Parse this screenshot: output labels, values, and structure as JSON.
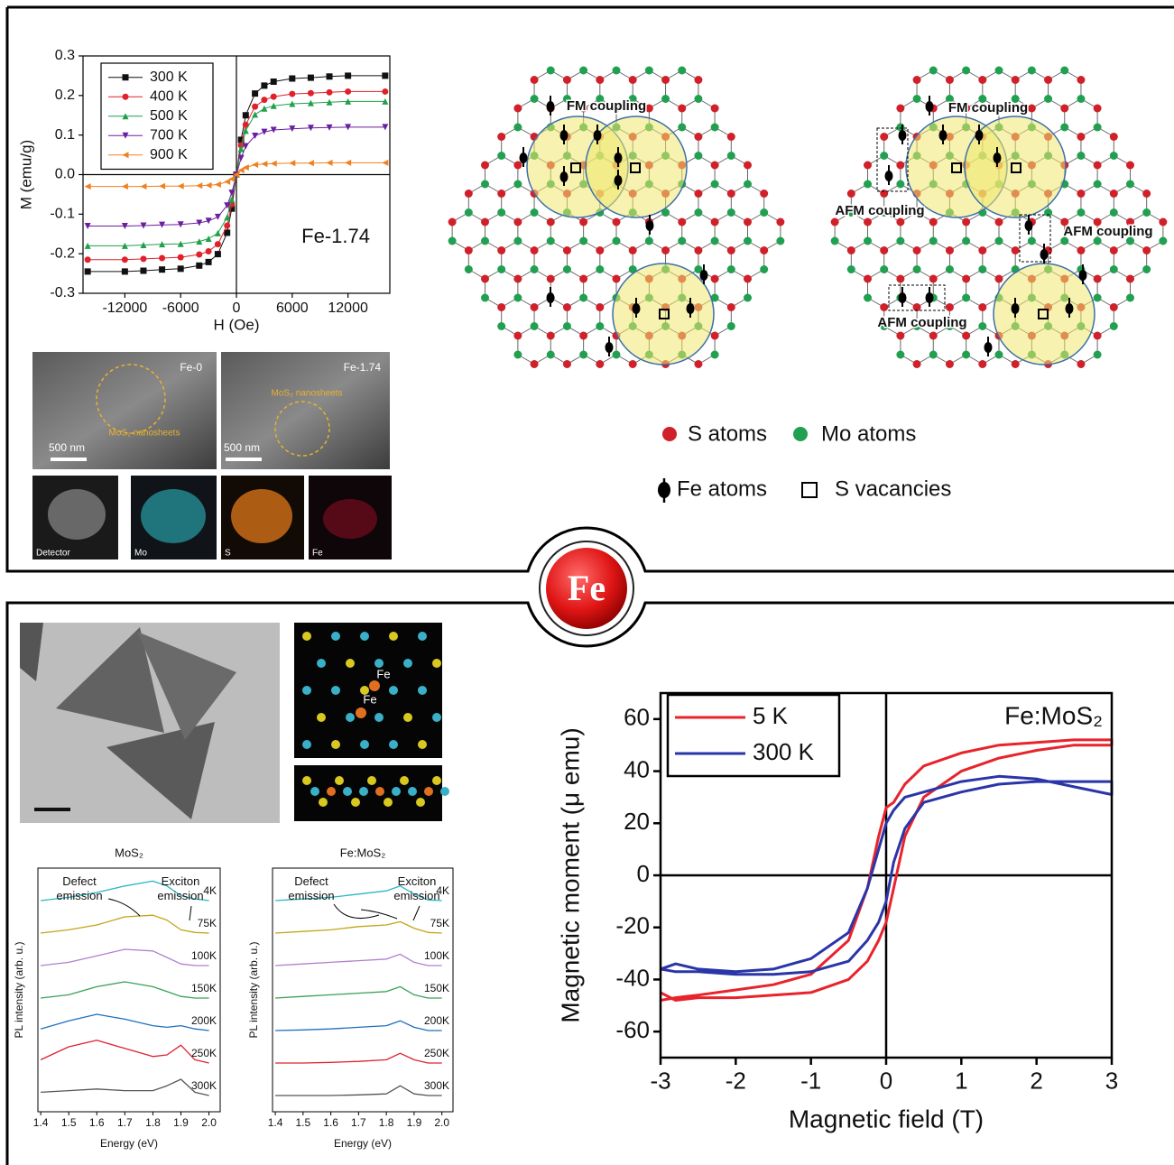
{
  "chart_data": [
    {
      "type": "line",
      "ylabel": "M (emu/g)",
      "xlabel": "H (Oe)",
      "annotation": "Fe-1.74",
      "legend": "upper left",
      "grid": false,
      "x": [
        -16000,
        -12000,
        -10000,
        -8000,
        -6000,
        -4000,
        -3000,
        -2000,
        -1000,
        -500,
        0,
        500,
        1000,
        2000,
        3000,
        4000,
        6000,
        8000,
        10000,
        12000,
        16000
      ],
      "xlim": [
        -16500,
        16500
      ],
      "xticks": [
        -12000,
        -6000,
        0,
        6000,
        12000
      ],
      "ylim": [
        -0.3,
        0.3
      ],
      "yticks": [
        -0.3,
        -0.2,
        -0.1,
        {
          "value": 0,
          "label": "0.0"
        },
        0.1,
        0.2,
        0.3
      ],
      "series": [
        {
          "name": "300 K",
          "color": "#111111",
          "marker": "square",
          "values": [
            -0.245,
            -0.245,
            -0.243,
            -0.24,
            -0.238,
            -0.23,
            -0.221,
            -0.201,
            -0.147,
            -0.086,
            0,
            0.088,
            0.15,
            0.205,
            0.225,
            0.235,
            0.243,
            0.245,
            0.248,
            0.25,
            0.25
          ]
        },
        {
          "name": "400 K",
          "color": "#e0202a",
          "marker": "circle",
          "values": [
            -0.215,
            -0.215,
            -0.213,
            -0.211,
            -0.209,
            -0.202,
            -0.194,
            -0.176,
            -0.129,
            -0.075,
            0,
            0.074,
            0.126,
            0.172,
            0.189,
            0.197,
            0.204,
            0.206,
            0.208,
            0.21,
            0.21
          ]
        },
        {
          "name": "500 K",
          "color": "#1fa04a",
          "marker": "triangle-up",
          "values": [
            -0.18,
            -0.18,
            -0.178,
            -0.176,
            -0.175,
            -0.169,
            -0.162,
            -0.148,
            -0.108,
            -0.063,
            0,
            0.065,
            0.111,
            0.152,
            0.167,
            0.174,
            0.179,
            0.181,
            0.183,
            0.185,
            0.185
          ]
        },
        {
          "name": "700 K",
          "color": "#6a1fa0",
          "marker": "triangle-down",
          "values": [
            -0.13,
            -0.13,
            -0.129,
            -0.127,
            -0.126,
            -0.122,
            -0.117,
            -0.107,
            -0.078,
            -0.046,
            0,
            0.042,
            0.072,
            0.098,
            0.108,
            0.113,
            0.116,
            0.118,
            0.119,
            0.12,
            0.12
          ]
        },
        {
          "name": "900 K",
          "color": "#f08020",
          "marker": "triangle-left",
          "values": [
            -0.03,
            -0.03,
            -0.03,
            -0.029,
            -0.029,
            -0.028,
            -0.027,
            -0.025,
            -0.018,
            -0.011,
            0,
            0.011,
            0.018,
            0.025,
            0.027,
            0.028,
            0.029,
            0.029,
            0.03,
            0.03,
            0.03
          ]
        }
      ]
    },
    {
      "type": "line",
      "title": "MoS₂",
      "xlabel": "Energy (eV)",
      "ylabel": "PL intensity (arb. u.)",
      "annotations": [
        {
          "lines": [
            "Defect",
            "emission"
          ]
        },
        {
          "lines": [
            "Exciton",
            "emission"
          ]
        }
      ],
      "x": [
        1.4,
        1.5,
        1.6,
        1.7,
        1.8,
        1.85,
        1.9,
        1.95,
        2.0
      ],
      "xlim": [
        1.39,
        2.04
      ],
      "xticks": [
        1.4,
        1.5,
        1.6,
        1.7,
        1.8,
        1.9,
        {
          "value": 2,
          "label": "2.0"
        }
      ],
      "ylim": [
        0.5,
        8
      ],
      "series": [
        {
          "name": "4K",
          "color": "#2ab7c4",
          "values": [
            7.0,
            7.1,
            7.25,
            7.45,
            7.6,
            7.45,
            7.15,
            7.05,
            7.0
          ]
        },
        {
          "name": "75K",
          "color": "#c4a417",
          "values": [
            6.0,
            6.1,
            6.25,
            6.5,
            6.55,
            6.4,
            6.1,
            6.02,
            6.0
          ]
        },
        {
          "name": "100K",
          "color": "#b07fd0",
          "values": [
            5.0,
            5.1,
            5.3,
            5.5,
            5.45,
            5.25,
            5.05,
            5.0,
            5.0
          ]
        },
        {
          "name": "150K",
          "color": "#3aa05a",
          "values": [
            4.0,
            4.1,
            4.35,
            4.5,
            4.35,
            4.2,
            4.05,
            4.0,
            4.0
          ]
        },
        {
          "name": "200K",
          "color": "#1f6fbf",
          "values": [
            3.05,
            3.3,
            3.5,
            3.35,
            3.15,
            3.1,
            3.15,
            3.05,
            3.0
          ]
        },
        {
          "name": "250K",
          "color": "#e02030",
          "values": [
            2.1,
            2.5,
            2.7,
            2.45,
            2.2,
            2.25,
            2.55,
            2.1,
            2.0
          ]
        },
        {
          "name": "300K",
          "color": "#555555",
          "values": [
            1.1,
            1.15,
            1.2,
            1.15,
            1.15,
            1.3,
            1.5,
            1.1,
            1.0
          ]
        }
      ]
    },
    {
      "type": "line",
      "title": "Fe:MoS₂",
      "xlabel": "Energy (eV)",
      "ylabel": "PL intensity (arb. u.)",
      "annotations": [
        {
          "lines": [
            "Defect",
            "emission"
          ]
        },
        {
          "lines": [
            "Exciton",
            "emission"
          ]
        }
      ],
      "x": [
        1.4,
        1.5,
        1.6,
        1.7,
        1.8,
        1.85,
        1.9,
        1.95,
        2.0
      ],
      "xlim": [
        1.39,
        2.04
      ],
      "xticks": [
        1.4,
        1.5,
        1.6,
        1.7,
        1.8,
        1.9,
        {
          "value": 2,
          "label": "2.0"
        }
      ],
      "ylim": [
        0.5,
        8
      ],
      "series": [
        {
          "name": "4K",
          "color": "#2ab7c4",
          "values": [
            7.0,
            7.05,
            7.1,
            7.2,
            7.3,
            7.45,
            7.2,
            7.02,
            7.0
          ]
        },
        {
          "name": "75K",
          "color": "#c4a417",
          "values": [
            6.0,
            6.05,
            6.1,
            6.2,
            6.25,
            6.35,
            6.15,
            6.02,
            6.0
          ]
        },
        {
          "name": "100K",
          "color": "#b07fd0",
          "values": [
            5.0,
            5.05,
            5.1,
            5.15,
            5.2,
            5.35,
            5.1,
            5.0,
            5.0
          ]
        },
        {
          "name": "150K",
          "color": "#3aa05a",
          "values": [
            4.0,
            4.05,
            4.1,
            4.15,
            4.2,
            4.35,
            4.1,
            4.0,
            4.0
          ]
        },
        {
          "name": "200K",
          "color": "#1f6fbf",
          "values": [
            3.0,
            3.02,
            3.05,
            3.1,
            3.15,
            3.3,
            3.1,
            3.0,
            3.0
          ]
        },
        {
          "name": "250K",
          "color": "#e02030",
          "values": [
            2.0,
            2.0,
            2.02,
            2.05,
            2.1,
            2.3,
            2.1,
            2.0,
            2.0
          ]
        },
        {
          "name": "300K",
          "color": "#555555",
          "values": [
            1.0,
            1.0,
            1.0,
            1.02,
            1.05,
            1.3,
            1.05,
            1.0,
            1.0
          ]
        }
      ]
    },
    {
      "type": "line",
      "xlabel": "Magnetic field (T)",
      "ylabel": "Magnetic moment (μ emu)",
      "annotation": "Fe:MoS₂",
      "legend": "upper left",
      "grid": false,
      "xlim": [
        -3,
        3
      ],
      "xticks": [
        -3,
        -2,
        -1,
        0,
        1,
        2,
        3
      ],
      "ylim": [
        -70,
        70
      ],
      "yticks": [
        -60,
        -40,
        -20,
        0,
        20,
        40,
        60
      ],
      "series": [
        {
          "name": "5 K",
          "color": "#e8232b",
          "x": [
            -3,
            -2.8,
            -2.5,
            -2,
            -1.5,
            -1,
            -0.5,
            -0.25,
            -0.1,
            0,
            0.1,
            0.25,
            0.5,
            1,
            1.5,
            2,
            2.5,
            3,
            3,
            2.5,
            2,
            1.5,
            1,
            0.5,
            0.25,
            0.1,
            0,
            -0.1,
            -0.25,
            -0.5,
            -1,
            -1.5,
            -2,
            -2.5,
            -2.8,
            -3
          ],
          "values": [
            -45,
            -48,
            -47,
            -47,
            -46,
            -45,
            -40,
            -33,
            -25,
            -18,
            -5,
            15,
            30,
            40,
            45,
            48,
            50,
            50,
            52,
            52,
            51,
            50,
            47,
            42,
            35,
            28,
            26,
            15,
            -5,
            -25,
            -38,
            -42,
            -44,
            -46,
            -47,
            -48
          ]
        },
        {
          "name": "300 K",
          "color": "#2a35a8",
          "x": [
            -3,
            -2.8,
            -2.5,
            -2,
            -1.5,
            -1,
            -0.5,
            -0.25,
            -0.1,
            0,
            0.1,
            0.25,
            0.5,
            1,
            1.5,
            2,
            2.5,
            3,
            3,
            2.5,
            2,
            1.5,
            1,
            0.5,
            0.25,
            0.1,
            0,
            -0.1,
            -0.25,
            -0.5,
            -1,
            -1.5,
            -2,
            -2.5,
            -2.8,
            -3
          ],
          "values": [
            -36,
            -37,
            -37,
            -38,
            -38,
            -37,
            -33,
            -25,
            -18,
            -10,
            5,
            18,
            28,
            32,
            35,
            36,
            36,
            36,
            31,
            34,
            37,
            38,
            36,
            32,
            30,
            25,
            20,
            10,
            -5,
            -22,
            -32,
            -36,
            -37,
            -36,
            -34,
            -36
          ]
        }
      ]
    }
  ],
  "lattice": {
    "labels": [
      "FM coupling",
      "FM coupling",
      "AFM coupling",
      "AFM coupling",
      "AFM coupling"
    ],
    "legend": [
      "S atoms",
      "Mo atoms",
      "Fe atoms",
      "S vacancies"
    ]
  },
  "micrographs": {
    "sem": [
      {
        "label": "Fe-0",
        "note": "MoS₂ nanosheets",
        "scale": "500 nm"
      },
      {
        "label": "Fe-1.74",
        "note": "MoS₂ nanosheets",
        "scale": "500 nm"
      }
    ],
    "eds": [
      "Detector",
      "Mo",
      "S",
      "Fe"
    ],
    "atom_labels": [
      "Fe",
      "Fe"
    ]
  },
  "center_label": "Fe"
}
